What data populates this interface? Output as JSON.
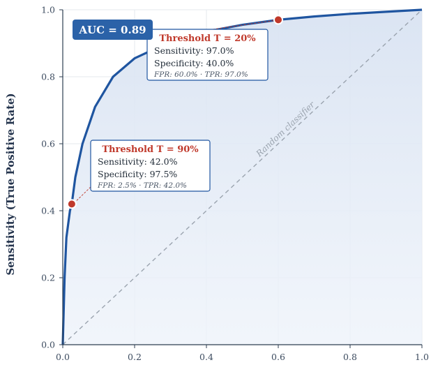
{
  "chart_data": {
    "type": "line",
    "title": "",
    "xlabel": "",
    "ylabel": "Sensitivity (True Positive Rate)",
    "xlim": [
      0,
      1
    ],
    "ylim": [
      0,
      1
    ],
    "x_ticks": [
      "0.0",
      "0.2",
      "0.4",
      "0.6",
      "0.8",
      "1.0"
    ],
    "y_ticks": [
      "0.0",
      "0.2",
      "0.4",
      "0.6",
      "0.8",
      "1.0"
    ],
    "grid": true,
    "series": [
      {
        "x": [
          0.0,
          0.005,
          0.01,
          0.02,
          0.025,
          0.035,
          0.055,
          0.09,
          0.14,
          0.2,
          0.26,
          0.32,
          0.4,
          0.5,
          0.6,
          0.7,
          0.8,
          0.9,
          1.0
        ],
        "y": [
          0.0,
          0.2,
          0.32,
          0.4,
          0.42,
          0.5,
          0.6,
          0.71,
          0.8,
          0.855,
          0.885,
          0.91,
          0.935,
          0.955,
          0.97,
          0.98,
          0.988,
          0.994,
          1.0
        ],
        "color": "#1f55a0"
      }
    ],
    "reference_line": {
      "x": [
        0,
        1
      ],
      "y": [
        0,
        1
      ],
      "label": "Random classifier",
      "color": "#9aa3ae"
    },
    "auc_label": "AUC = 0.89",
    "annotations": [
      {
        "point": {
          "x": 0.6,
          "y": 0.97
        },
        "title": "Threshold T = 20%",
        "sensitivity": "Sensitivity: 97.0%",
        "specificity": "Specificity: 40.0%",
        "note": "FPR: 60.0% · TPR: 97.0%"
      },
      {
        "point": {
          "x": 0.025,
          "y": 0.42
        },
        "title": "Threshold T = 90%",
        "sensitivity": "Sensitivity: 42.0%",
        "specificity": "Specificity: 97.5%",
        "note": "FPR: 2.5% · TPR: 42.0%"
      }
    ]
  }
}
